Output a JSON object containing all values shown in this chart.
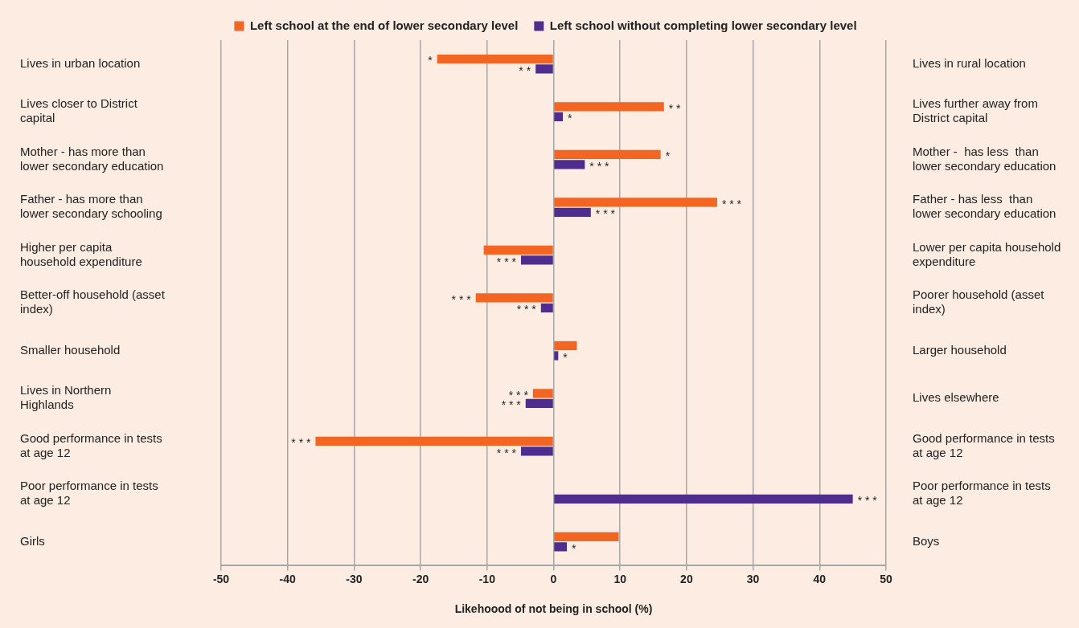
{
  "chart_data": {
    "type": "bar",
    "orientation": "horizontal",
    "xlabel": "Likehoood of not being in school (%)",
    "categories": [
      "Lives in urban location",
      "Lives closer to District capital",
      "Mother - has more than lower secondary education",
      "Father - has more than lower secondary schooling",
      "Higher per capita household expenditure",
      "Better-off household (asset index)",
      "Smaller household",
      "Lives in Northern Highlands",
      "Good performance in tests at age 12",
      "Poor performance in tests at age 12",
      "Girls"
    ],
    "y2_categories": [
      "Lives in rural location",
      "Lives further away from District capital",
      "Mother -  has less  than lower secondary education",
      "Father - has less  than lower secondary education",
      "Lower per capita household expenditure",
      "Poorer household (asset index)",
      "Larger household",
      "Lives elsewhere",
      "Good performance in tests at age 12",
      "Poor performance in tests at age 12",
      "Boys"
    ],
    "series": [
      {
        "name": "Left school at the end of lower secondary level",
        "color": "#f26522",
        "values": [
          -17.5,
          16.6,
          16.1,
          24.6,
          -10.5,
          -11.7,
          3.5,
          -3.1,
          -35.8,
          null,
          9.8
        ],
        "value_labels": [
          "*",
          "* *",
          "*",
          "* * *",
          null,
          "* * *",
          null,
          "* * *",
          "* * *",
          null,
          null
        ]
      },
      {
        "name": "Left school without completing lower secondary level",
        "color": "#4f2d8f",
        "values": [
          -2.7,
          1.4,
          4.7,
          5.6,
          -4.9,
          -1.9,
          0.7,
          -4.2,
          -4.9,
          45,
          2.0
        ],
        "value_labels": [
          "* *",
          "*",
          "* * *",
          "* * *",
          "* * *",
          "* * *",
          "*",
          "* * *",
          "* * *",
          "* * *",
          "*"
        ]
      }
    ],
    "xlim": [
      -50,
      50
    ],
    "xticks": [
      -50,
      -40,
      -30,
      -20,
      -10,
      0,
      10,
      20,
      30,
      40,
      50
    ],
    "grid": "x",
    "legend": "top"
  }
}
